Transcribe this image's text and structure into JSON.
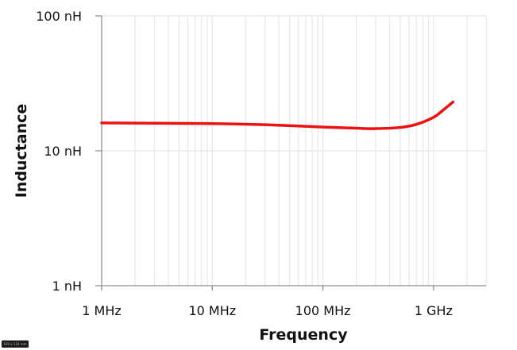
{
  "chart_data": {
    "type": "line",
    "title": "",
    "xlabel": "Frequency",
    "ylabel": "Inductance",
    "xscale": "log",
    "yscale": "log",
    "xlim_hz": [
      1000000,
      3000000000
    ],
    "ylim_nH": [
      1,
      100
    ],
    "x_ticks": [
      {
        "value": 1000000,
        "label": "1 MHz"
      },
      {
        "value": 10000000,
        "label": "10 MHz"
      },
      {
        "value": 100000000,
        "label": "100 MHz"
      },
      {
        "value": 1000000000,
        "label": "1 GHz"
      }
    ],
    "y_ticks": [
      {
        "value": 1,
        "label": "1 nH"
      },
      {
        "value": 10,
        "label": "10 nH"
      },
      {
        "value": 100,
        "label": "100 nH"
      }
    ],
    "grid": true,
    "legend": null,
    "series": [
      {
        "name": "Inductance",
        "color": "#ee1111",
        "x_hz": [
          1000000,
          3000000,
          10000000,
          30000000,
          100000000,
          200000000,
          300000000,
          500000000,
          700000000,
          1000000000,
          1200000000,
          1500000000
        ],
        "values_nH": [
          16.1,
          16.0,
          15.9,
          15.6,
          15.0,
          14.7,
          14.6,
          14.9,
          15.7,
          17.7,
          19.8,
          23.0
        ]
      }
    ]
  },
  "badge_text": "160 x 114 mm"
}
